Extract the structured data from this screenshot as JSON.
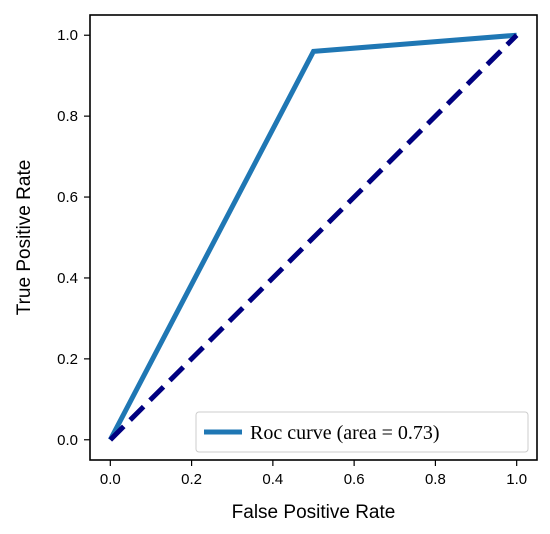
{
  "chart_data": {
    "type": "line",
    "title": "",
    "xlabel": "False Positive Rate",
    "ylabel": "True Positive Rate",
    "xlim": [
      -0.05,
      1.05
    ],
    "ylim": [
      -0.05,
      1.05
    ],
    "xticks": [
      0.0,
      0.2,
      0.4,
      0.6,
      0.8,
      1.0
    ],
    "yticks": [
      0.0,
      0.2,
      0.4,
      0.6,
      0.8,
      1.0
    ],
    "xtick_labels": [
      "0.0",
      "0.2",
      "0.4",
      "0.6",
      "0.8",
      "1.0"
    ],
    "ytick_labels": [
      "0.0",
      "0.2",
      "0.4",
      "0.6",
      "0.8",
      "1.0"
    ],
    "grid": false,
    "legend": {
      "placement": "lower-right"
    },
    "series": [
      {
        "name": "Roc curve (area = 0.73)",
        "x": [
          0.0,
          0.5,
          1.0
        ],
        "y": [
          0.0,
          0.96,
          1.0
        ],
        "color": "#1f77b4",
        "style": "solid"
      },
      {
        "x": [
          0.0,
          1.0
        ],
        "y": [
          0.0,
          1.0
        ],
        "color": "#000080",
        "style": "dashed"
      }
    ]
  }
}
